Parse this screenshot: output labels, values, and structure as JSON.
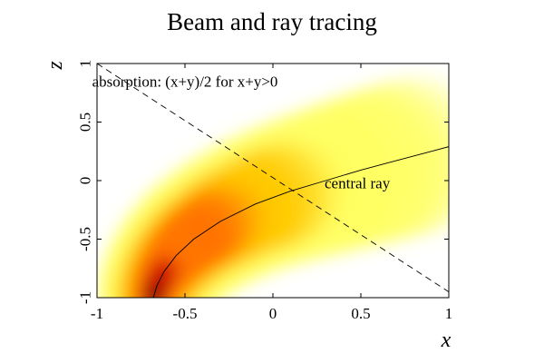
{
  "chart_data": {
    "type": "heatmap",
    "title": "Beam and ray tracing",
    "xlabel": "x",
    "ylabel": "z",
    "xlim": [
      -1,
      1
    ],
    "ylim": [
      -1,
      1
    ],
    "x_ticks": [
      "-1",
      "-0.5",
      "0",
      "0.5",
      "1"
    ],
    "y_ticks": [
      "-1",
      "-0.5",
      "0",
      "0.5",
      "1"
    ],
    "x_tick_values": [
      -1,
      -0.5,
      0,
      0.5,
      1
    ],
    "y_tick_values": [
      -1,
      -0.5,
      0,
      0.5,
      1
    ],
    "colormap": [
      "#ffffff",
      "#ffff66",
      "#ffcc00",
      "#ff7700",
      "#cc0000",
      "#000000"
    ],
    "grid": false,
    "annotations": [
      {
        "text": "absorption: (x+y)/2 for x+y>0",
        "x": -0.5,
        "y": 0.85
      },
      {
        "text": "central ray",
        "x": 0.48,
        "y": -0.02
      }
    ],
    "series": [
      {
        "type": "line",
        "style": "solid",
        "x": [
          -0.68,
          -0.66,
          -0.62,
          -0.55,
          -0.45,
          -0.3,
          -0.1,
          0.1,
          0.3,
          0.5,
          0.7,
          0.9,
          1.0
        ],
        "y": [
          -1.0,
          -0.9,
          -0.78,
          -0.64,
          -0.5,
          -0.35,
          -0.2,
          -0.09,
          0.0,
          0.09,
          0.17,
          0.25,
          0.29
        ]
      },
      {
        "type": "line",
        "style": "dashed",
        "x": [
          -1.0,
          1.0
        ],
        "y": [
          1.0,
          -0.95
        ]
      }
    ]
  }
}
